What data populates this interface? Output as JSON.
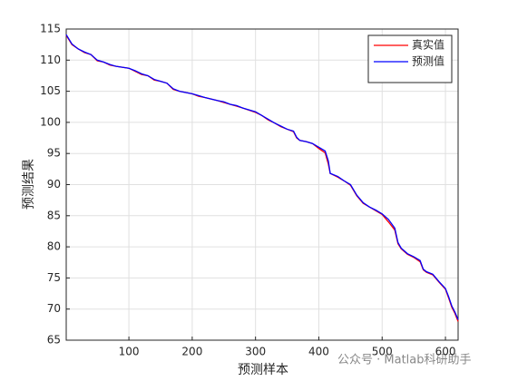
{
  "chart_data": {
    "type": "line",
    "xlabel": "预测样本",
    "ylabel": "预测结果",
    "x": [
      1,
      10,
      20,
      30,
      40,
      50,
      60,
      70,
      80,
      100,
      110,
      120,
      130,
      140,
      150,
      160,
      170,
      180,
      200,
      210,
      220,
      240,
      250,
      260,
      270,
      280,
      300,
      310,
      320,
      330,
      340,
      350,
      360,
      365,
      370,
      380,
      390,
      400,
      410,
      415,
      418,
      430,
      440,
      450,
      460,
      470,
      480,
      490,
      500,
      510,
      520,
      525,
      530,
      540,
      550,
      560,
      565,
      570,
      580,
      590,
      600,
      605,
      610,
      615,
      620
    ],
    "series": [
      {
        "name": "真实值",
        "color": "#ff0000",
        "values": [
          114,
          112.5,
          111.8,
          111.2,
          110.9,
          109.9,
          109.7,
          109.2,
          109,
          108.7,
          108.2,
          107.7,
          107.5,
          106.8,
          106.6,
          106.3,
          105.3,
          105,
          104.6,
          104.2,
          104,
          103.5,
          103.2,
          102.9,
          102.6,
          102.3,
          101.6,
          101.1,
          100.4,
          99.9,
          99.3,
          98.9,
          98.5,
          97.5,
          97.1,
          96.9,
          96.6,
          95.8,
          95.1,
          93.3,
          91.8,
          91.2,
          90.6,
          89.9,
          88.2,
          87.0,
          86.4,
          85.8,
          85.2,
          84.0,
          82.7,
          80.5,
          79.7,
          78.8,
          78.3,
          77.6,
          76.3,
          75.9,
          75.5,
          74.3,
          73.2,
          71.8,
          70.3,
          69.3,
          68
        ]
      },
      {
        "name": "预测值",
        "color": "#0000ff",
        "values": [
          114.1,
          112.6,
          111.8,
          111.3,
          110.9,
          110,
          109.7,
          109.3,
          109,
          108.7,
          108.3,
          107.8,
          107.5,
          106.9,
          106.6,
          106.3,
          105.4,
          105,
          104.6,
          104.3,
          104,
          103.5,
          103.3,
          102.9,
          102.7,
          102.3,
          101.7,
          101.1,
          100.5,
          99.9,
          99.4,
          98.9,
          98.6,
          97.6,
          97.1,
          96.9,
          96.6,
          96.0,
          95.4,
          93.8,
          91.8,
          91.3,
          90.6,
          90.0,
          88.3,
          87.1,
          86.4,
          85.9,
          85.3,
          84.4,
          83.0,
          80.7,
          79.8,
          78.9,
          78.4,
          77.8,
          76.4,
          76.0,
          75.6,
          74.4,
          73.3,
          72.0,
          70.5,
          69.5,
          68.3
        ]
      }
    ],
    "xlim": [
      1,
      620
    ],
    "xticks": [
      100,
      200,
      300,
      400,
      500,
      600
    ],
    "ylim": [
      65,
      115
    ],
    "yticks": [
      65,
      70,
      75,
      80,
      85,
      90,
      95,
      100,
      105,
      110,
      115
    ],
    "grid": true,
    "legend": "northeast",
    "watermark": "公众号 · Matlab科研助手"
  }
}
